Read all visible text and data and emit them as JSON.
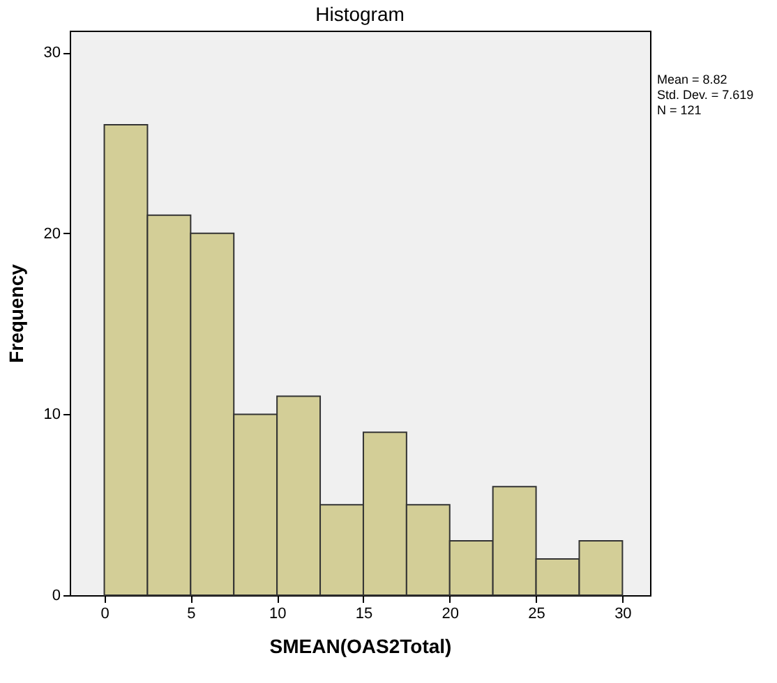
{
  "chart_data": {
    "type": "histogram",
    "title": "Histogram",
    "xlabel": "SMEAN(OAS2Total)",
    "ylabel": "Frequency",
    "bins": [
      0,
      2.5,
      5,
      7.5,
      10,
      12.5,
      15,
      17.5,
      20,
      22.5,
      25,
      27.5,
      30
    ],
    "values": [
      26,
      21,
      20,
      10,
      11,
      5,
      9,
      5,
      3,
      6,
      2,
      3
    ],
    "color": "#d3ce97",
    "xlim": [
      -2,
      31.6
    ],
    "xticks": [
      0,
      5,
      10,
      15,
      20,
      25,
      30
    ],
    "ylim": [
      0,
      31.2
    ],
    "yticks": [
      0,
      10,
      20,
      30
    ],
    "grid": false,
    "annotations": [
      "Mean = 8.82",
      "Std. Dev. = 7.619",
      "N = 121"
    ]
  }
}
